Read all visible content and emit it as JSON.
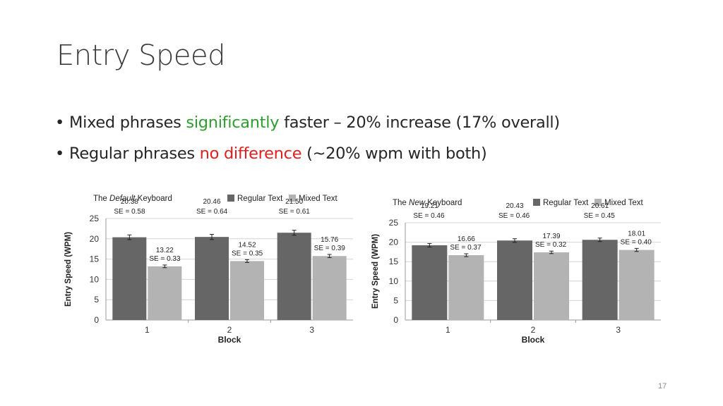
{
  "slide": {
    "title": "Entry Speed",
    "bullet1": {
      "prefix": "Mixed phrases ",
      "highlight": "significantly",
      "suffix": " faster – 20% increase (17% overall)"
    },
    "bullet2": {
      "prefix": "Regular phrases ",
      "highlight": "no difference",
      "suffix": " (~20% wpm with both)"
    },
    "page_number": "17"
  },
  "colors": {
    "regular": "#666666",
    "mixed": "#b3b3b3",
    "green": "#2e9e2e",
    "red": "#e02020"
  },
  "chart_data": [
    {
      "type": "bar",
      "title_pre": "The ",
      "title_em": "Default",
      "title_post": " Keyboard",
      "categories": [
        "1",
        "2",
        "3"
      ],
      "series": [
        {
          "name": "Regular Text",
          "values": [
            20.38,
            20.46,
            21.5
          ],
          "se": [
            0.58,
            0.64,
            0.61
          ],
          "labels": [
            "20.38",
            "20.46",
            "21.50"
          ],
          "se_labels": [
            "SE = 0.58",
            "SE = 0.64",
            "SE = 0.61"
          ]
        },
        {
          "name": "Mixed Text",
          "values": [
            13.22,
            14.52,
            15.76
          ],
          "se": [
            0.33,
            0.35,
            0.39
          ],
          "labels": [
            "13.22",
            "14.52",
            "15.76"
          ],
          "se_labels": [
            "SE = 0.33",
            "SE = 0.35",
            "SE = 0.39"
          ]
        }
      ],
      "xlabel": "Block",
      "ylabel": "Entry Speed (WPM)",
      "ylim": [
        0,
        25
      ],
      "yticks": [
        "0",
        "5",
        "10",
        "15",
        "20",
        "25"
      ],
      "grid": true,
      "legend": "top-right"
    },
    {
      "type": "bar",
      "title_pre": "The ",
      "title_em": "New",
      "title_post": " Keyboard",
      "categories": [
        "1",
        "2",
        "3"
      ],
      "series": [
        {
          "name": "Regular Text",
          "values": [
            19.21,
            20.43,
            20.61
          ],
          "se": [
            0.46,
            0.46,
            0.45
          ],
          "labels": [
            "19.21",
            "20.43",
            "20.61"
          ],
          "se_labels": [
            "SE = 0.46",
            "SE = 0.46",
            "SE = 0.45"
          ]
        },
        {
          "name": "Mixed Text",
          "values": [
            16.66,
            17.39,
            18.01
          ],
          "se": [
            0.37,
            0.32,
            0.4
          ],
          "labels": [
            "16.66",
            "17.39",
            "18.01"
          ],
          "se_labels": [
            "SE = 0.37",
            "SE = 0.32",
            "SE = 0.40"
          ]
        }
      ],
      "xlabel": "Block",
      "ylabel": "Entry Speed (WPM)",
      "ylim": [
        0,
        25
      ],
      "yticks": [
        "0",
        "5",
        "10",
        "15",
        "20",
        "25"
      ],
      "grid": true,
      "legend": "top-right"
    }
  ]
}
